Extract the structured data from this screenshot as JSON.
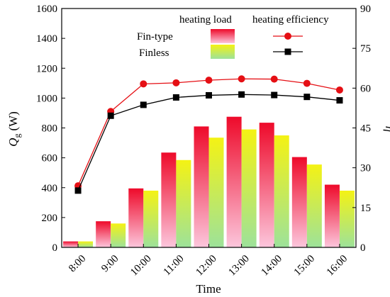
{
  "chart_data": {
    "type": "bar",
    "categories": [
      "8:00",
      "9:00",
      "10:00",
      "11:00",
      "12:00",
      "13:00",
      "14:00",
      "15:00",
      "16:00"
    ],
    "xlabel": "Time",
    "ylabel": {
      "main": "Q",
      "sub": "g",
      "unit": "(W)"
    },
    "y2label": "η",
    "ylim": [
      0,
      1600
    ],
    "yticks": [
      0,
      200,
      400,
      600,
      800,
      1000,
      1200,
      1400,
      1600
    ],
    "y2lim": [
      0,
      90
    ],
    "y2ticks": [
      0,
      15,
      30,
      45,
      60,
      75,
      90
    ],
    "legend": {
      "headers": [
        "heating load",
        "heating efficiency"
      ],
      "rows": [
        "Fin-type",
        "Finless"
      ]
    },
    "bar_series": [
      {
        "name": "Fin-type",
        "values": [
          40,
          175,
          395,
          635,
          810,
          875,
          835,
          605,
          420
        ]
      },
      {
        "name": "Finless",
        "values": [
          40,
          160,
          380,
          585,
          735,
          790,
          750,
          555,
          380
        ]
      }
    ],
    "line_series": [
      {
        "name": "Fin-type",
        "values": [
          23.2,
          51.2,
          61.6,
          62.0,
          63.0,
          63.5,
          63.4,
          61.8,
          59.3
        ]
      },
      {
        "name": "Finless",
        "values": [
          21.4,
          49.6,
          53.7,
          56.5,
          57.3,
          57.6,
          57.4,
          56.7,
          55.4
        ]
      }
    ],
    "colors": {
      "fin_bar_top": "#ee0a2a",
      "fin_bar_bottom": "#fcc6dc",
      "finless_bar_top": "#f4f214",
      "finless_bar_bottom": "#9de29a",
      "fin_line": "#e50f14",
      "finless_line": "#000000"
    }
  }
}
